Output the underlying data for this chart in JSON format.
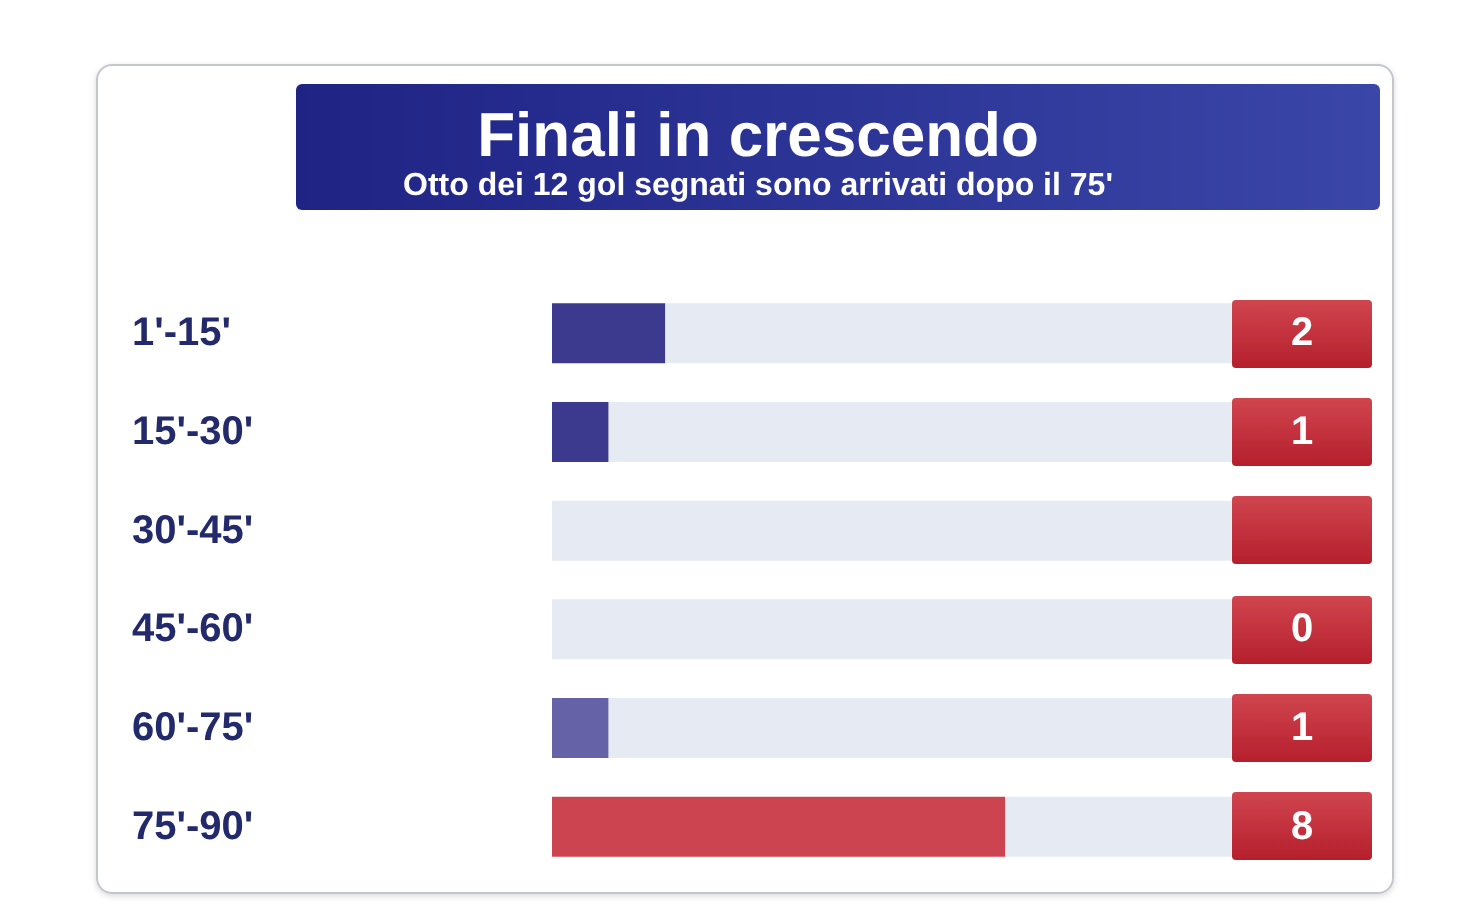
{
  "chart_data": {
    "type": "bar",
    "orientation": "horizontal",
    "stacked": true,
    "title": "Finali in crescendo",
    "subtitle": "Otto dei 12 gol segnati sono arrivati dopo il 75'",
    "categories": [
      "1'-15'",
      "15'-30'",
      "30'-45'",
      "45'-60'",
      "60'-75'",
      "75'-90'"
    ],
    "series": [
      {
        "values": [
          2,
          1,
          0,
          0,
          1,
          8
        ],
        "colors": [
          "#3b3a8e",
          "#3b3a8e",
          "#3b3a8e",
          "#3b3a8e",
          "#6562a8",
          "#cc4450"
        ],
        "value_labels": [
          "2",
          "1",
          null,
          "0",
          "1",
          "8"
        ]
      },
      {
        "values": [
          10,
          11,
          12,
          12,
          11,
          4
        ],
        "color": "#e6eaf2"
      }
    ]
  }
}
